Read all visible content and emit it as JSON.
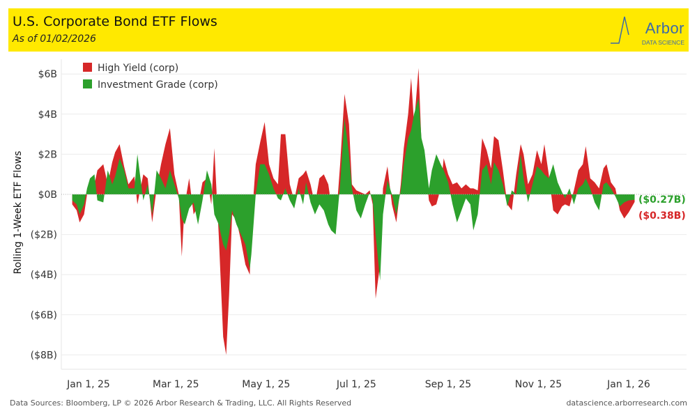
{
  "header": {
    "title": "U.S. Corporate Bond ETF Flows",
    "subtitle": "As of 01/02/2026",
    "logo_text": "Arbor",
    "logo_subtext": "DATA SCIENCE"
  },
  "footer": {
    "sources": "Data Sources: Bloomberg, LP © 2026 Arbor Research & Trading, LLC. All Rights Reserved",
    "url": "datascience.arborresearch.com"
  },
  "chart_data": {
    "type": "area",
    "title": "U.S. Corporate Bond ETF Flows",
    "ylabel": "Rolling 1-Week ETF Flows",
    "xlabel": "",
    "x_unit": "days since Jan 1, 2025",
    "ylim": [
      -8.5,
      6.5
    ],
    "y_ticks": [
      {
        "v": 6,
        "label": "$6B"
      },
      {
        "v": 4,
        "label": "$4B"
      },
      {
        "v": 2,
        "label": "$2B"
      },
      {
        "v": 0,
        "label": "$0B"
      },
      {
        "v": -2,
        "label": "($2B)"
      },
      {
        "v": -4,
        "label": "($4B)"
      },
      {
        "v": -6,
        "label": "($6B)"
      },
      {
        "v": -8,
        "label": "($8B)"
      }
    ],
    "x_ticks": [
      {
        "v": 0,
        "label": "Jan 1, 25"
      },
      {
        "v": 59,
        "label": "Mar 1, 25"
      },
      {
        "v": 120,
        "label": "May 1, 25"
      },
      {
        "v": 181,
        "label": "Jul 1, 25"
      },
      {
        "v": 243,
        "label": "Sep 1, 25"
      },
      {
        "v": 304,
        "label": "Nov 1, 25"
      },
      {
        "v": 365,
        "label": "Jan 1, 26"
      }
    ],
    "xlim": [
      -11,
      369
    ],
    "legend_position": "top-left",
    "series": [
      {
        "name": "High Yield (corp)",
        "color": "#d62728",
        "end_label": "($0.38B)",
        "values": [
          -0.5,
          -0.8,
          -1.4,
          -1.0,
          0,
          0.3,
          0.5,
          1.2,
          1.5,
          0.5,
          1.6,
          2.1,
          2.5,
          1.4,
          0.5,
          0.9,
          -0.5,
          1.0,
          0.8,
          -1.4,
          0.3,
          1.5,
          2.5,
          3.3,
          1.0,
          0.0,
          -3.1,
          -0.5,
          0.8,
          -1.0,
          -0.6,
          0.6,
          0.8,
          -0.5,
          2.3,
          -2.0,
          -7.1,
          -8.0,
          -5.0,
          -1.0,
          -1.3,
          -2.3,
          -3.5,
          -4.0,
          -1.5,
          1.5,
          2.6,
          3.6,
          1.5,
          0.8,
          0.5,
          3.0,
          3.0,
          0.5,
          -0.3,
          0.8,
          1.0,
          1.2,
          0.5,
          -0.5,
          0.8,
          1.0,
          0.5,
          -0.5,
          -1.5,
          1.5,
          5.0,
          3.5,
          0.5,
          0.2,
          0.1,
          0.0,
          0.2,
          -0.5,
          -5.2,
          -3.5,
          0.3,
          1.4,
          -0.5,
          -1.4,
          0.5,
          2.3,
          4.0,
          5.8,
          3.5,
          6.3,
          2.5,
          2.0,
          -0.3,
          -0.6,
          -0.5,
          0.3,
          1.8,
          1.0,
          0.5,
          0.6,
          0.3,
          0.5,
          0.3,
          0.3,
          0.2,
          2.8,
          2.2,
          1.3,
          2.9,
          2.7,
          1.2,
          -0.5,
          -0.8,
          1.0,
          2.5,
          2.0,
          0.5,
          1.0,
          2.2,
          1.5,
          2.5,
          1.0,
          -0.8,
          -1.0,
          -0.6,
          -0.5,
          -0.6,
          0.2,
          1.2,
          1.5,
          2.4,
          0.8,
          0.6,
          0.3,
          1.3,
          1.5,
          0.6,
          0.3,
          -0.8,
          -1.2,
          -0.9,
          -0.38
        ]
      },
      {
        "name": "Investment Grade (corp)",
        "color": "#2ca02c",
        "end_label": "($0.27B)",
        "values": [
          -0.3,
          -0.5,
          -1.0,
          -0.5,
          0.3,
          0.8,
          1.0,
          -0.3,
          -0.4,
          1.2,
          0.5,
          0.9,
          1.8,
          1.2,
          0.3,
          0.3,
          2.0,
          -0.3,
          0.5,
          -1.0,
          1.2,
          0.8,
          0.3,
          1.2,
          0.5,
          -0.2,
          -1.2,
          -1.5,
          -0.7,
          -0.4,
          -1.5,
          -0.3,
          1.2,
          0.5,
          -1.0,
          -1.5,
          -2.5,
          -2.8,
          -2.0,
          -0.8,
          -1.5,
          -2.0,
          -2.5,
          -3.7,
          -3.0,
          0.0,
          1.5,
          1.5,
          1.0,
          0.3,
          -0.2,
          -0.3,
          0.3,
          -0.3,
          -0.7,
          0.3,
          -0.5,
          0.6,
          -0.4,
          -1.0,
          -0.5,
          -0.8,
          -1.5,
          -1.8,
          -2.0,
          0.5,
          3.8,
          2.0,
          0.3,
          -0.8,
          -1.2,
          -0.5,
          0.1,
          -0.3,
          -2.0,
          -4.3,
          -1.0,
          0.7,
          0.0,
          -1.0,
          0.2,
          1.5,
          2.8,
          3.2,
          4.0,
          4.8,
          2.8,
          2.2,
          0.3,
          1.2,
          2.0,
          1.5,
          1.2,
          0.6,
          -0.5,
          -1.4,
          -0.8,
          -0.2,
          -0.5,
          -1.8,
          -1.0,
          1.2,
          1.5,
          0.5,
          1.6,
          1.2,
          0.5,
          -0.6,
          0.2,
          0.0,
          2.0,
          0.8,
          -0.4,
          0.5,
          1.4,
          1.2,
          1.0,
          0.8,
          1.5,
          0.6,
          0.1,
          -0.2,
          0.3,
          -0.5,
          0.3,
          0.5,
          0.8,
          0.3,
          -0.4,
          -0.8,
          0.5,
          0.6,
          0.3,
          -0.1,
          -0.6,
          -0.4,
          -0.3,
          -0.27
        ]
      }
    ],
    "x": [
      -11,
      -8,
      -6,
      -3,
      -1,
      1,
      4,
      6,
      10,
      13,
      16,
      18,
      21,
      24,
      27,
      31,
      33,
      37,
      40,
      43,
      46,
      49,
      52,
      55,
      58,
      61,
      63,
      65,
      68,
      71,
      74,
      77,
      80,
      83,
      85,
      88,
      91,
      93,
      95,
      97,
      100,
      103,
      106,
      109,
      110,
      113,
      116,
      119,
      122,
      125,
      128,
      130,
      133,
      136,
      139,
      142,
      145,
      147,
      150,
      153,
      156,
      159,
      162,
      164,
      167,
      170,
      173,
      176,
      178,
      181,
      184,
      187,
      190,
      192,
      194,
      197,
      199,
      202,
      205,
      208,
      211,
      213,
      216,
      218,
      220,
      223,
      225,
      227,
      230,
      232,
      235,
      238,
      240,
      243,
      246,
      249,
      252,
      255,
      258,
      260,
      263,
      266,
      269,
      272,
      274,
      277,
      280,
      283,
      286,
      289,
      292,
      294,
      297,
      300,
      303,
      306,
      308,
      311,
      314,
      317,
      320,
      322,
      325,
      328,
      331,
      334,
      336,
      339,
      342,
      345,
      348,
      350,
      353,
      356,
      359,
      362,
      365,
      369
    ]
  }
}
